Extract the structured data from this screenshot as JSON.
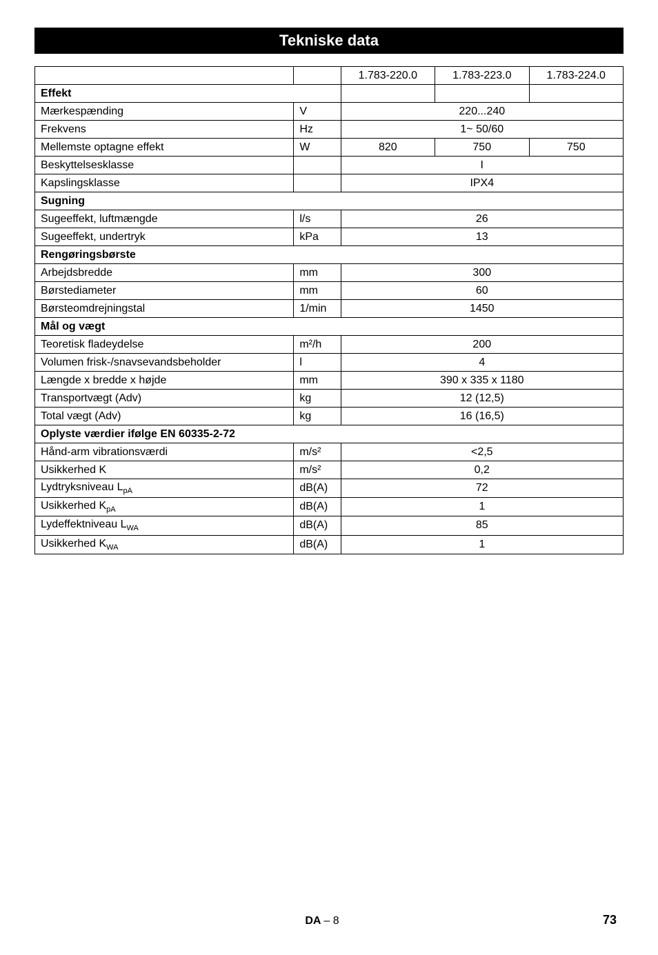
{
  "title": "Tekniske data",
  "header_cols": [
    "1.783-220.0",
    "1.783-223.0",
    "1.783-224.0"
  ],
  "sections": {
    "effekt": {
      "title": "Effekt",
      "rows": [
        {
          "label": "Mærkespænding",
          "unit": "V",
          "val_merged": "220...240"
        },
        {
          "label": "Frekvens",
          "unit": "Hz",
          "val_merged": "1~ 50/60"
        },
        {
          "label": "Mellemste optagne effekt",
          "unit": "W",
          "vals": [
            "820",
            "750",
            "750"
          ]
        },
        {
          "label": "Beskyttelsesklasse",
          "unit": "",
          "val_merged": "I"
        },
        {
          "label": "Kapslingsklasse",
          "unit": "",
          "val_merged": "IPX4"
        }
      ]
    },
    "sugning": {
      "title": "Sugning",
      "rows": [
        {
          "label": "Sugeeffekt, luftmængde",
          "unit": "l/s",
          "val_merged": "26"
        },
        {
          "label": "Sugeeffekt, undertryk",
          "unit": "kPa",
          "val_merged": "13"
        }
      ]
    },
    "rengor": {
      "title": "Rengøringsbørste",
      "rows": [
        {
          "label": "Arbejdsbredde",
          "unit": "mm",
          "val_merged": "300"
        },
        {
          "label": "Børstediameter",
          "unit": "mm",
          "val_merged": "60"
        },
        {
          "label": "Børsteomdrejningstal",
          "unit": "1/min",
          "val_merged": "1450"
        }
      ]
    },
    "maal": {
      "title": "Mål og vægt",
      "rows": [
        {
          "label": "Teoretisk fladeydelse",
          "unit": "m²/h",
          "val_merged": "200"
        },
        {
          "label": "Volumen frisk-/snavsevandsbeholder",
          "unit": "l",
          "val_merged": "4"
        },
        {
          "label": "Længde x bredde x højde",
          "unit": "mm",
          "val_merged": "390 x 335 x 1180"
        },
        {
          "label": "Transportvægt (Adv)",
          "unit": "kg",
          "val_merged": "12 (12,5)"
        },
        {
          "label": "Total vægt (Adv)",
          "unit": "kg",
          "val_merged": "16 (16,5)"
        }
      ]
    },
    "oplyste": {
      "title": "Oplyste værdier ifølge EN 60335-2-72",
      "rows": [
        {
          "label": "Hånd-arm vibrationsværdi",
          "unit": "m/s²",
          "val_merged": "<2,5"
        },
        {
          "label": "Usikkerhed K",
          "unit": "m/s²",
          "val_merged": "0,2"
        },
        {
          "label_html": "Lydtryksniveau L<sub>pA</sub>",
          "unit": "dB(A)",
          "val_merged": "72"
        },
        {
          "label_html": "Usikkerhed K<sub>pA</sub>",
          "unit": "dB(A)",
          "val_merged": "1"
        },
        {
          "label_html": "Lydeffektniveau L<sub>WA</sub>",
          "unit": "dB(A)",
          "val_merged": "85"
        },
        {
          "label_html": "Usikkerhed K<sub>WA</sub>",
          "unit": "dB(A)",
          "val_merged": "1"
        }
      ]
    }
  },
  "footer": {
    "lang": "DA",
    "sep": "–",
    "page_small": "8",
    "page_big": "73"
  }
}
